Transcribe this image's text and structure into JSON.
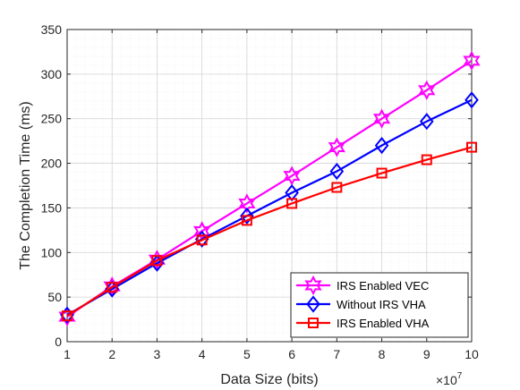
{
  "chart_data": {
    "type": "line",
    "title": "",
    "xlabel": "Data Size (bits)",
    "ylabel": "The Completion Time (ms)",
    "x_exponent_label": "×10",
    "x_exponent_power": "7",
    "x": [
      1,
      2,
      3,
      4,
      5,
      6,
      7,
      8,
      9,
      10
    ],
    "xlim": [
      1,
      10
    ],
    "ylim": [
      0,
      350
    ],
    "x_ticks": [
      "1",
      "2",
      "3",
      "4",
      "5",
      "6",
      "7",
      "8",
      "9",
      "10"
    ],
    "y_ticks": [
      "0",
      "50",
      "100",
      "150",
      "200",
      "250",
      "300",
      "350"
    ],
    "grid": true,
    "legend_position": "bottom-right",
    "series": [
      {
        "name": "IRS Enabled VEC",
        "color": "#ff00ff",
        "marker": "hexagram",
        "values": [
          28,
          62,
          92,
          124,
          155,
          186,
          218,
          250,
          282,
          315
        ]
      },
      {
        "name": "Without IRS VHA",
        "color": "#0000ff",
        "marker": "diamond",
        "values": [
          30,
          59,
          88,
          115,
          141,
          167,
          191,
          220,
          247,
          271
        ]
      },
      {
        "name": "IRS Enabled VHA",
        "color": "#ff0000",
        "marker": "square",
        "values": [
          29,
          61,
          91,
          114,
          136,
          155,
          173,
          189,
          204,
          218
        ]
      }
    ]
  }
}
